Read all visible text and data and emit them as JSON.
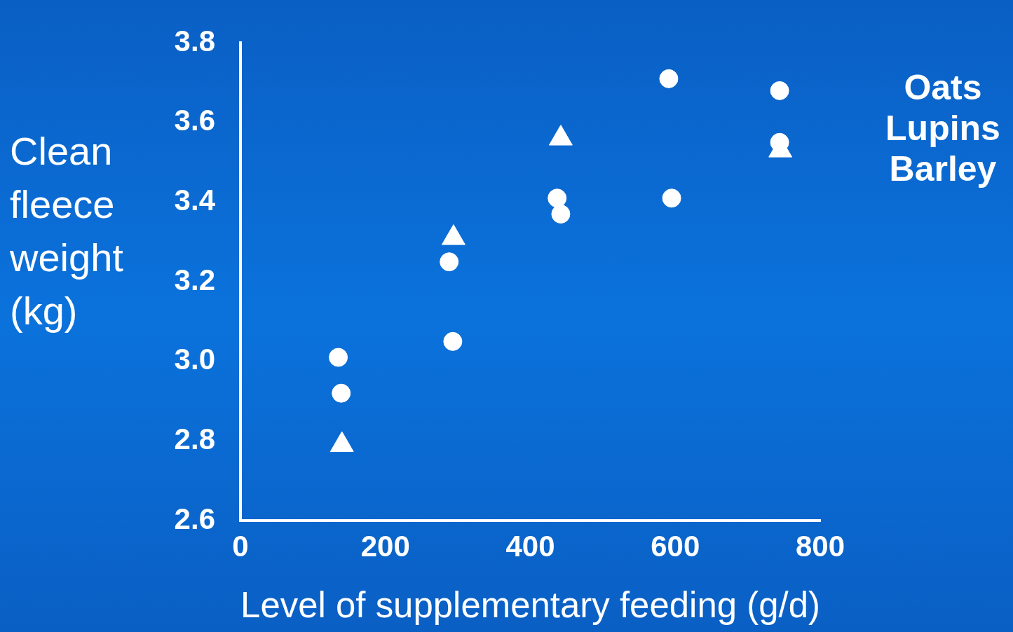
{
  "chart_data": {
    "type": "scatter",
    "xlabel": "Level of supplementary feeding (g/d)",
    "ylabel": "Clean fleece weight (kg)",
    "xlim": [
      0,
      800
    ],
    "xticks": [
      0,
      200,
      400,
      600,
      800
    ],
    "ylim": [
      2.6,
      3.8
    ],
    "yticks": [
      2.6,
      2.8,
      {
        "value": 3,
        "label": "3.0"
      },
      3.2,
      3.4,
      3.6,
      3.8
    ],
    "grid": false,
    "legend": false,
    "annotations": [
      "Oats",
      "Lupins",
      "Barley"
    ],
    "series": [
      {
        "color": "#ffffff",
        "marker": "circle",
        "x": [
          135,
          139,
          288,
          293,
          437,
          442,
          591,
          595,
          744,
          744
        ],
        "values": [
          3.01,
          2.92,
          3.25,
          3.05,
          3.41,
          3.37,
          3.71,
          3.41,
          3.68,
          3.55
        ]
      },
      {
        "color": "#ffffff",
        "marker": "triangle",
        "x": [
          140,
          294,
          442,
          745
        ],
        "values": [
          2.79,
          3.31,
          3.56,
          3.53
        ]
      }
    ]
  }
}
